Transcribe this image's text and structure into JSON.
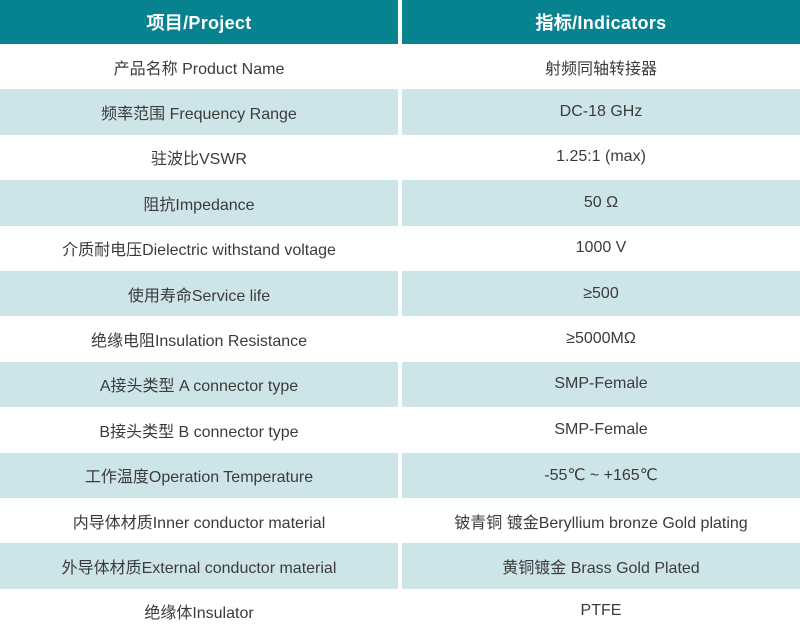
{
  "table": {
    "colors": {
      "header_bg": "#07838F",
      "header_text": "#ffffff",
      "row_bg": "#ffffff",
      "row_alt_bg": "#cde5e9",
      "body_text": "#3b3b3b"
    },
    "header": {
      "project": "项目/Project",
      "indicators": "指标/Indicators"
    },
    "rows": [
      {
        "project": "产品名称 Product Name",
        "indicator": "射频同轴转接器"
      },
      {
        "project": "频率范围 Frequency Range",
        "indicator": "DC-18 GHz"
      },
      {
        "project": "驻波比VSWR",
        "indicator": "1.25:1 (max)"
      },
      {
        "project": "阻抗Impedance",
        "indicator": "50 Ω"
      },
      {
        "project": "介质耐电压Dielectric withstand voltage",
        "indicator": "1000 V"
      },
      {
        "project": "使用寿命Service life",
        "indicator": "≥500"
      },
      {
        "project": "绝缘电阻Insulation Resistance",
        "indicator": "≥5000MΩ"
      },
      {
        "project": "A接头类型 A connector type",
        "indicator": "SMP-Female"
      },
      {
        "project": "B接头类型 B connector type",
        "indicator": "SMP-Female"
      },
      {
        "project": "工作温度Operation Temperature",
        "indicator": "-55℃ ~ +165℃"
      },
      {
        "project": "内导体材质Inner conductor material",
        "indicator": "铍青铜 镀金Beryllium bronze Gold plating"
      },
      {
        "project": "外导体材质External conductor material",
        "indicator": "黄铜镀金 Brass Gold Plated"
      },
      {
        "project": "绝缘体Insulator",
        "indicator": "PTFE"
      }
    ]
  }
}
